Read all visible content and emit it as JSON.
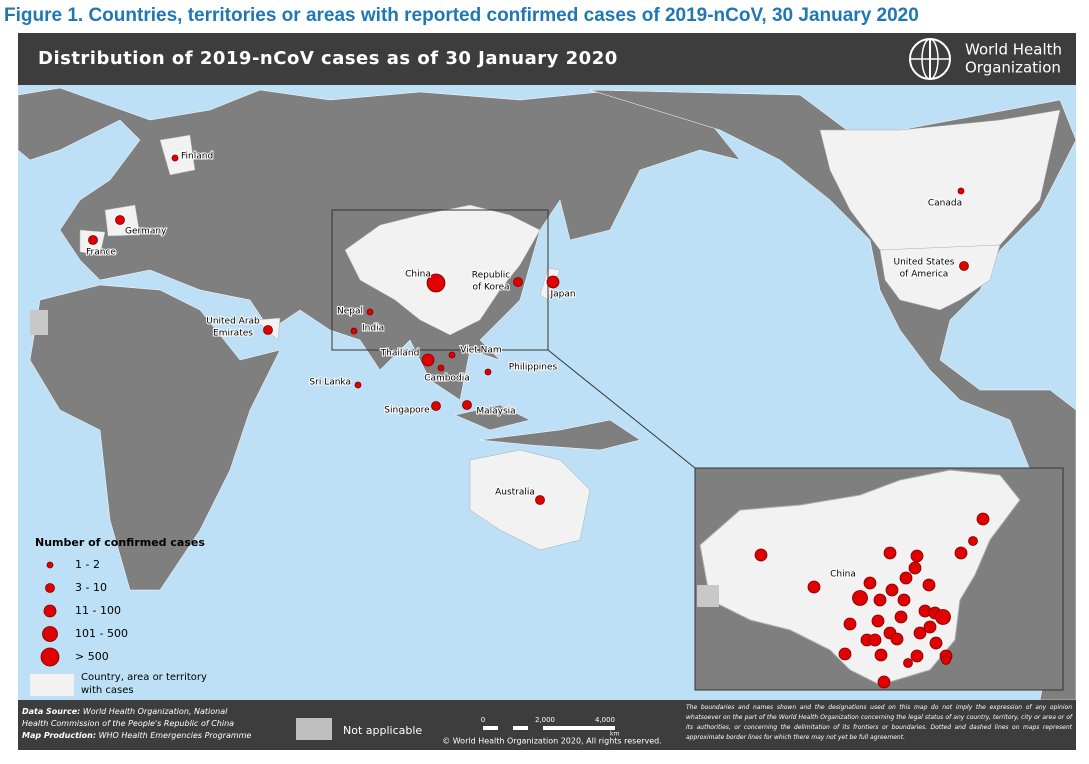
{
  "figure_title": "Figure 1. Countries, territories or areas with reported confirmed cases of 2019-nCoV, 30 January 2020",
  "map_title": "Distribution of 2019-nCoV cases as of 30 January 2020",
  "logo_text": [
    "World Health",
    "Organization"
  ],
  "countries": [
    {
      "label": [
        "Finland"
      ],
      "size": 0
    },
    {
      "label": [
        "Germany"
      ],
      "size": 1
    },
    {
      "label": [
        "France"
      ],
      "size": 1
    },
    {
      "label": [
        "United Arab",
        "Emirates"
      ],
      "size": 1
    },
    {
      "label": [
        "Nepal"
      ],
      "size": 0
    },
    {
      "label": [
        "India"
      ],
      "size": 0
    },
    {
      "label": [
        "Sri Lanka"
      ],
      "size": 0
    },
    {
      "label": [
        "China"
      ],
      "size": 4
    },
    {
      "label": [
        "Republic",
        "of Korea"
      ],
      "size": 1
    },
    {
      "label": [
        "Japan"
      ],
      "size": 2
    },
    {
      "label": [
        "Thailand"
      ],
      "size": 2
    },
    {
      "label": [
        "Viet Nam"
      ],
      "size": 0
    },
    {
      "label": [
        "Cambodia"
      ],
      "size": 0
    },
    {
      "label": [
        "Philippines"
      ],
      "size": 0
    },
    {
      "label": [
        "Singapore"
      ],
      "size": 1
    },
    {
      "label": [
        "Malaysia"
      ],
      "size": 1
    },
    {
      "label": [
        "Australia"
      ],
      "size": 1
    },
    {
      "label": [
        "Canada"
      ],
      "size": 0
    },
    {
      "label": [
        "United States",
        "of America"
      ],
      "size": 1
    }
  ],
  "inset": {
    "label": "China",
    "dots": [
      2,
      2,
      1,
      2,
      2,
      2,
      2,
      2,
      2,
      2,
      2,
      2,
      3,
      2,
      2,
      2,
      2,
      2,
      3,
      2,
      2,
      2,
      2,
      2,
      2,
      2,
      2,
      2,
      2,
      2,
      1,
      2,
      2,
      2,
      1
    ]
  },
  "legend": {
    "title": "Number of confirmed cases",
    "classes": [
      "1 - 2",
      "3 - 10",
      "11 - 100",
      "101 - 500",
      "> 500"
    ],
    "with_cases": [
      "Country, area or territory",
      "with cases"
    ],
    "not_applicable": "Not applicable"
  },
  "footer": {
    "source_label": "Data Source:",
    "source_lines": [
      "World Health Organization, National",
      "Health Commission of the People's Republic of China"
    ],
    "production_label": "Map Production:",
    "production": "WHO Health Emergencies Programme",
    "scale": [
      "0",
      "2,000",
      "4,000"
    ],
    "scale_unit": "km",
    "copyright": "© World Health Organization 2020, All rights reserved.",
    "disclaimer": "The boundaries and names shown and the designations used on this map do not imply the expression of any opinion whatsoever on the part of the World Health Organization concerning the legal status of any country, territory, city or area or of its authorities, or concerning the delimitation of its frontiers or boundaries. Dotted and dashed lines on maps represent approximate border lines for which there may not yet be full agreement."
  }
}
